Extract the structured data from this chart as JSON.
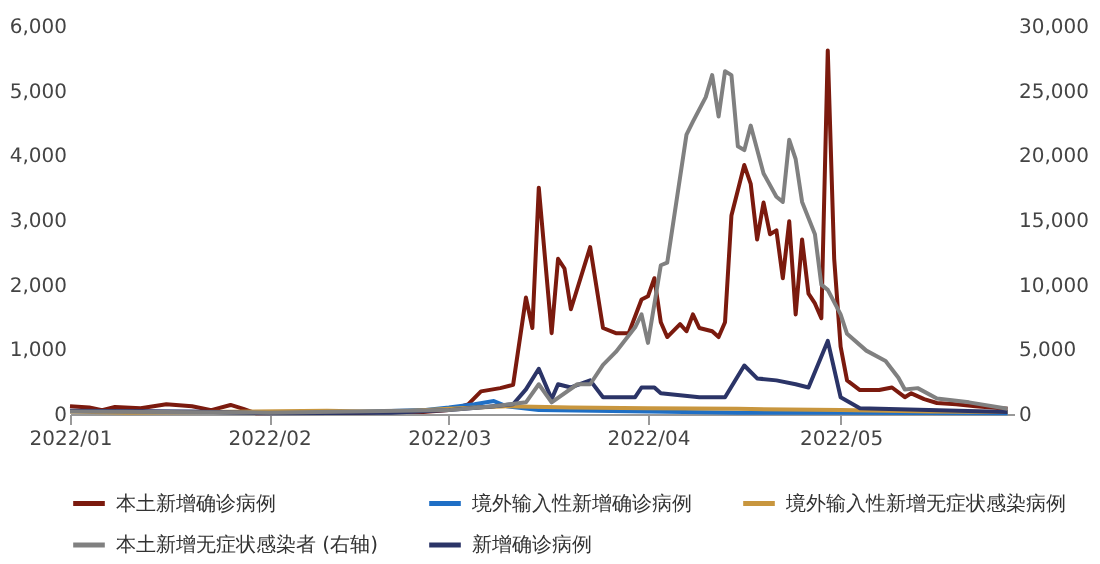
{
  "chart_data": {
    "type": "line",
    "xlim": [
      "2022-01-01",
      "2022-05-28"
    ],
    "xticks": [
      {
        "value": "2022-01-01",
        "label": "2022/01"
      },
      {
        "value": "2022-02-01",
        "label": "2022/02"
      },
      {
        "value": "2022-03-01",
        "label": "2022/03"
      },
      {
        "value": "2022-04-01",
        "label": "2022/04"
      },
      {
        "value": "2022-05-01",
        "label": "2022/05"
      }
    ],
    "ylim": [
      0,
      6000
    ],
    "yticks": [
      0,
      {
        "value": 1000,
        "label": "1,000"
      },
      {
        "value": 2000,
        "label": "2,000"
      },
      {
        "value": 3000,
        "label": "3,000"
      },
      {
        "value": 4000,
        "label": "4,000"
      },
      {
        "value": 5000,
        "label": "5,000"
      },
      {
        "value": 6000,
        "label": "6,000"
      }
    ],
    "y2lim": [
      0,
      30000
    ],
    "y2ticks": [
      0,
      {
        "value": 5000,
        "label": "5,000"
      },
      {
        "value": 10000,
        "label": "10,000"
      },
      {
        "value": 15000,
        "label": "15,000"
      },
      {
        "value": 20000,
        "label": "20,000"
      },
      {
        "value": 25000,
        "label": "25,000"
      },
      {
        "value": 30000,
        "label": "30,000"
      }
    ],
    "legend": "bottom",
    "series": [
      {
        "name": "本土新增确诊病例",
        "color": "#7b1a0e",
        "x": [
          "2022-01-01",
          "2022-01-04",
          "2022-01-06",
          "2022-01-08",
          "2022-01-12",
          "2022-01-16",
          "2022-01-20",
          "2022-01-23",
          "2022-01-26",
          "2022-01-28",
          "2022-01-30",
          "2022-02-05",
          "2022-02-15",
          "2022-02-20",
          "2022-02-25",
          "2022-03-01",
          "2022-03-04",
          "2022-03-06",
          "2022-03-09",
          "2022-03-11",
          "2022-03-13",
          "2022-03-14",
          "2022-03-15",
          "2022-03-17",
          "2022-03-18",
          "2022-03-19",
          "2022-03-20",
          "2022-03-23",
          "2022-03-25",
          "2022-03-27",
          "2022-03-29",
          "2022-03-31",
          "2022-04-01",
          "2022-04-02",
          "2022-04-03",
          "2022-04-04",
          "2022-04-06",
          "2022-04-07",
          "2022-04-08",
          "2022-04-09",
          "2022-04-11",
          "2022-04-12",
          "2022-04-13",
          "2022-04-14",
          "2022-04-16",
          "2022-04-17",
          "2022-04-18",
          "2022-04-19",
          "2022-04-20",
          "2022-04-21",
          "2022-04-22",
          "2022-04-23",
          "2022-04-24",
          "2022-04-25",
          "2022-04-26",
          "2022-04-27",
          "2022-04-28",
          "2022-04-29",
          "2022-04-30",
          "2022-05-01",
          "2022-05-02",
          "2022-05-04",
          "2022-05-07",
          "2022-05-09",
          "2022-05-11",
          "2022-05-12",
          "2022-05-14",
          "2022-05-16",
          "2022-05-19",
          "2022-05-22",
          "2022-05-27"
        ],
        "values": [
          120,
          100,
          60,
          110,
          90,
          150,
          120,
          60,
          140,
          80,
          10,
          20,
          20,
          40,
          30,
          60,
          150,
          350,
          400,
          450,
          1800,
          1330,
          3500,
          1250,
          2400,
          2250,
          1620,
          2580,
          1330,
          1250,
          1250,
          1770,
          1820,
          2100,
          1420,
          1190,
          1390,
          1280,
          1540,
          1330,
          1280,
          1190,
          1420,
          3070,
          3850,
          3560,
          2700,
          3270,
          2780,
          2840,
          2100,
          2980,
          1540,
          2700,
          1860,
          1710,
          1480,
          5620,
          2400,
          1040,
          520,
          370,
          370,
          410,
          260,
          320,
          230,
          170,
          150,
          120,
          80
        ]
      },
      {
        "name": "境外输入性新增确诊病例",
        "color": "#1f6fc5",
        "x": [
          "2022-02-15",
          "2022-02-25",
          "2022-03-01",
          "2022-03-05",
          "2022-03-08",
          "2022-03-10",
          "2022-03-15",
          "2022-04-01",
          "2022-04-15",
          "2022-05-01",
          "2022-05-27"
        ],
        "values": [
          30,
          60,
          100,
          150,
          200,
          120,
          60,
          40,
          20,
          20,
          10
        ]
      },
      {
        "name": "境外输入性新增无症状感染病例",
        "color": "#c8963e",
        "x": [
          "2022-01-01",
          "2022-01-10",
          "2022-02-10",
          "2022-02-20",
          "2022-03-01",
          "2022-03-10",
          "2022-03-20",
          "2022-04-01",
          "2022-04-15",
          "2022-05-01",
          "2022-05-15",
          "2022-05-27"
        ],
        "values": [
          40,
          20,
          50,
          30,
          80,
          120,
          100,
          90,
          80,
          60,
          40,
          30
        ]
      },
      {
        "name": "本土新增无症状感染者 (右轴)",
        "color": "#808080",
        "axis": "y2",
        "x": [
          "2022-01-01",
          "2022-02-01",
          "2022-03-01",
          "2022-03-08",
          "2022-03-13",
          "2022-03-15",
          "2022-03-17",
          "2022-03-21",
          "2022-03-23",
          "2022-03-25",
          "2022-03-27",
          "2022-03-30",
          "2022-03-31",
          "2022-04-01",
          "2022-04-03",
          "2022-04-04",
          "2022-04-07",
          "2022-04-08",
          "2022-04-10",
          "2022-04-11",
          "2022-04-12",
          "2022-04-13",
          "2022-04-14",
          "2022-04-15",
          "2022-04-16",
          "2022-04-17",
          "2022-04-19",
          "2022-04-21",
          "2022-04-22",
          "2022-04-23",
          "2022-04-24",
          "2022-04-25",
          "2022-04-27",
          "2022-04-28",
          "2022-04-29",
          "2022-05-01",
          "2022-05-02",
          "2022-05-05",
          "2022-05-08",
          "2022-05-10",
          "2022-05-11",
          "2022-05-13",
          "2022-05-16",
          "2022-05-21",
          "2022-05-27"
        ],
        "values": [
          200,
          100,
          300,
          600,
          900,
          2300,
          900,
          2300,
          2300,
          3800,
          4800,
          6700,
          7700,
          5500,
          11500,
          11700,
          21600,
          22600,
          24500,
          26200,
          23000,
          26500,
          26200,
          20700,
          20400,
          22300,
          18600,
          16800,
          16400,
          21200,
          19700,
          16400,
          13900,
          10000,
          9600,
          7700,
          6200,
          4900,
          4100,
          2800,
          1900,
          2000,
          1200,
          900,
          400
        ]
      },
      {
        "name": "新增确诊病例",
        "color": "#2b3467",
        "x": [
          "2022-01-01",
          "2022-01-20",
          "2022-02-01",
          "2022-02-20",
          "2022-03-01",
          "2022-03-08",
          "2022-03-11",
          "2022-03-13",
          "2022-03-15",
          "2022-03-17",
          "2022-03-18",
          "2022-03-20",
          "2022-03-23",
          "2022-03-25",
          "2022-03-30",
          "2022-03-31",
          "2022-04-02",
          "2022-04-03",
          "2022-04-09",
          "2022-04-13",
          "2022-04-16",
          "2022-04-18",
          "2022-04-21",
          "2022-04-24",
          "2022-04-26",
          "2022-04-29",
          "2022-05-01",
          "2022-05-04",
          "2022-05-27"
        ],
        "values": [
          50,
          40,
          10,
          20,
          60,
          120,
          150,
          380,
          700,
          230,
          460,
          410,
          520,
          260,
          260,
          410,
          410,
          320,
          260,
          260,
          750,
          550,
          520,
          460,
          410,
          1130,
          260,
          90,
          30
        ]
      }
    ]
  }
}
